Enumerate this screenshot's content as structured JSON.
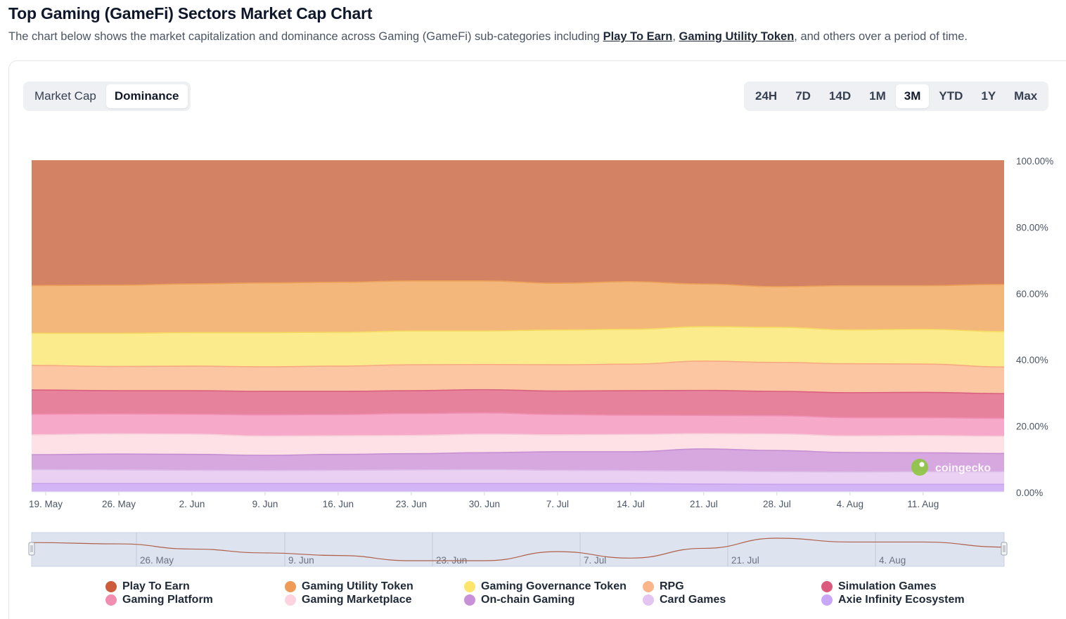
{
  "header": {
    "title": "Top Gaming (GameFi) Sectors Market Cap Chart",
    "desc_before": "The chart below shows the market capitalization and dominance across Gaming (GameFi) sub-categories including ",
    "link1": "Play To Earn",
    "sep": ", ",
    "link2": "Gaming Utility Token",
    "desc_after": ", and others over a period of time."
  },
  "view_toggle": {
    "options": [
      "Market Cap",
      "Dominance"
    ],
    "selected": "Dominance"
  },
  "range_toggle": {
    "options": [
      "24H",
      "7D",
      "14D",
      "1M",
      "3M",
      "YTD",
      "1Y",
      "Max"
    ],
    "selected": "3M"
  },
  "watermark": "coingecko",
  "navigator": {
    "labels": [
      "26. May",
      "9. Jun",
      "23. Jun",
      "7. Jul",
      "21. Jul",
      "4. Aug"
    ]
  },
  "chart_data": {
    "type": "area",
    "stacking": "percent",
    "x": [
      "19. May",
      "26. May",
      "2. Jun",
      "9. Jun",
      "16. Jun",
      "23. Jun",
      "30. Jun",
      "7. Jul",
      "14. Jul",
      "21. Jul",
      "28. Jul",
      "4. Aug",
      "11. Aug",
      "15. Aug"
    ],
    "x_ticks": [
      "19. May",
      "26. May",
      "2. Jun",
      "9. Jun",
      "16. Jun",
      "23. Jun",
      "30. Jun",
      "7. Jul",
      "14. Jul",
      "21. Jul",
      "28. Jul",
      "4. Aug",
      "11. Aug"
    ],
    "y_ticks": [
      "0.00%",
      "20.00%",
      "40.00%",
      "60.00%",
      "80.00%",
      "100.00%"
    ],
    "ylim": [
      0,
      100
    ],
    "y_axis_position": "right",
    "legend_position": "bottom",
    "series": [
      {
        "name": "Axie Infinity Ecosystem",
        "color": "#d3b5f5",
        "values": [
          2.5,
          2.5,
          2.5,
          2.5,
          2.5,
          2.5,
          2.5,
          2.5,
          2.5,
          2.4,
          2.3,
          2.3,
          2.3,
          2.3
        ]
      },
      {
        "name": "Card Games",
        "color": "#ead1f3",
        "values": [
          4.2,
          4.1,
          4.0,
          3.9,
          4.0,
          4.1,
          4.2,
          4.0,
          3.9,
          4.0,
          3.9,
          3.8,
          3.9,
          3.9
        ]
      },
      {
        "name": "On-chain Gaming",
        "color": "#d6a8df",
        "values": [
          4.5,
          4.8,
          4.8,
          4.6,
          4.8,
          4.9,
          5.1,
          5.6,
          5.7,
          6.8,
          6.5,
          6.0,
          5.8,
          5.6
        ]
      },
      {
        "name": "Gaming Marketplace",
        "color": "#fde1e7",
        "values": [
          6.0,
          6.1,
          6.1,
          5.8,
          5.6,
          5.5,
          5.6,
          5.1,
          5.2,
          4.7,
          5.1,
          5.1,
          5.3,
          5.3
        ]
      },
      {
        "name": "Gaming Platform",
        "color": "#f6a9c8",
        "values": [
          6.2,
          6.0,
          6.0,
          6.4,
          6.4,
          6.6,
          6.4,
          6.1,
          5.8,
          5.6,
          5.6,
          5.6,
          5.5,
          5.5
        ]
      },
      {
        "name": "Simulation Games",
        "color": "#e6829c",
        "values": [
          7.3,
          7.0,
          7.1,
          7.1,
          7.0,
          6.9,
          7.0,
          7.1,
          7.4,
          7.7,
          7.5,
          7.7,
          7.8,
          7.6
        ]
      },
      {
        "name": "RPG",
        "color": "#fdc6a3",
        "values": [
          7.4,
          7.3,
          7.4,
          7.4,
          7.6,
          7.8,
          7.6,
          7.9,
          8.0,
          9.0,
          8.9,
          8.9,
          8.7,
          8.2
        ]
      },
      {
        "name": "Gaming Governance Token",
        "color": "#fbeb8c",
        "values": [
          9.7,
          10.0,
          10.1,
          10.3,
          10.2,
          10.2,
          10.1,
          10.5,
          10.5,
          10.6,
          10.8,
          10.4,
          10.7,
          10.9
        ]
      },
      {
        "name": "Gaming Utility Token",
        "color": "#f3b77b",
        "values": [
          14.4,
          14.5,
          14.7,
          15.0,
          15.1,
          15.1,
          15.1,
          14.1,
          14.4,
          13.1,
          12.5,
          13.6,
          13.4,
          14.5
        ]
      },
      {
        "name": "Play To Earn",
        "color": "#d38363",
        "values": [
          37.8,
          37.7,
          37.3,
          37.0,
          36.8,
          36.4,
          36.4,
          37.1,
          36.6,
          38.1,
          38.9,
          38.6,
          38.6,
          38.2
        ]
      }
    ]
  },
  "legend": [
    {
      "name": "Play To Earn",
      "color": "#cd5c3c"
    },
    {
      "name": "Gaming Utility Token",
      "color": "#ef9a55"
    },
    {
      "name": "Gaming Governance Token",
      "color": "#fce56a"
    },
    {
      "name": "RPG",
      "color": "#fbb58b"
    },
    {
      "name": "Simulation Games",
      "color": "#dc5a7b"
    },
    {
      "name": "Gaming Platform",
      "color": "#f28db2"
    },
    {
      "name": "Gaming Marketplace",
      "color": "#fcd3de"
    },
    {
      "name": "On-chain Gaming",
      "color": "#c890d6"
    },
    {
      "name": "Card Games",
      "color": "#e4c4f0"
    },
    {
      "name": "Axie Infinity Ecosystem",
      "color": "#c9a6f7"
    }
  ]
}
